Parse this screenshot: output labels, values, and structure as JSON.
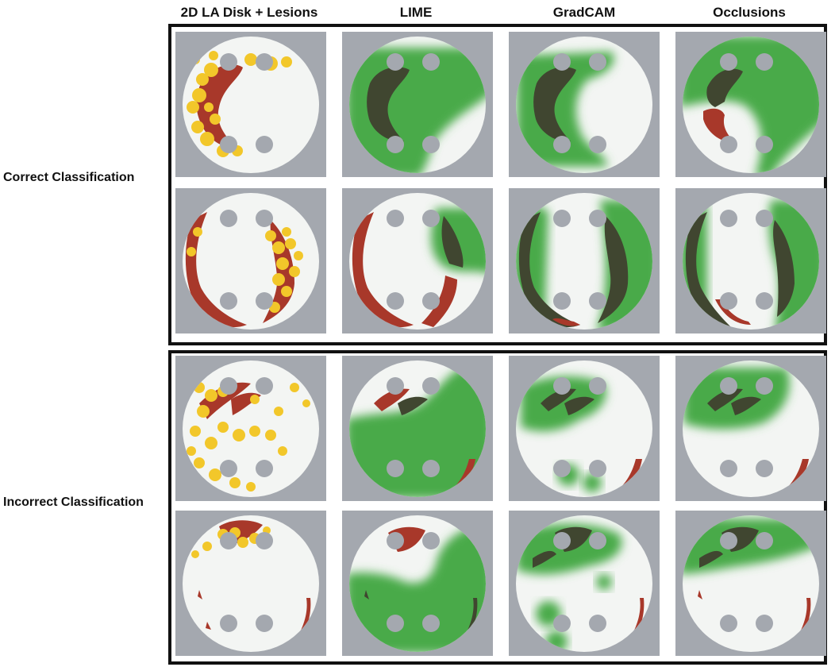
{
  "columns": [
    "2D LA Disk + Lesions",
    "LIME",
    "GradCAM",
    "Occlusions"
  ],
  "groups": [
    {
      "label": "Correct Classification"
    },
    {
      "label": "Incorrect Classification"
    }
  ],
  "colors": {
    "panel_background": "#a4a8af",
    "disk": "#f3f5f3",
    "lesion_red": "#a8382a",
    "lesion_yellow": "#f2c72a",
    "saliency_green": "#4aaa4a",
    "overlap_dark": "#404630",
    "hole_gray": "#a4a8af"
  }
}
